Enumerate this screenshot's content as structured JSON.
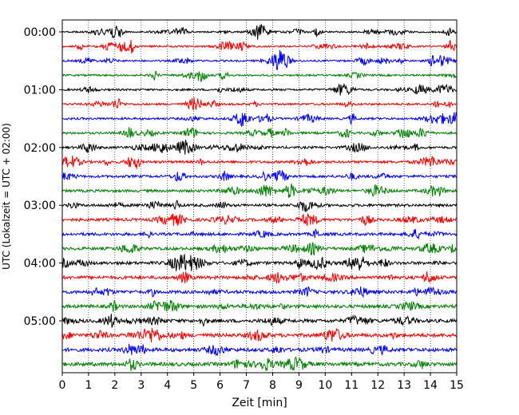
{
  "chart_data": {
    "type": "line",
    "subtype": "helicorder",
    "xlabel": "Zeit  [min]",
    "ylabel": "UTC (Lokalzeit = UTC + 02:00)",
    "xlim": [
      0,
      15
    ],
    "x_ticks": [
      "0",
      "1",
      "2",
      "3",
      "4",
      "5",
      "6",
      "7",
      "8",
      "9",
      "10",
      "11",
      "12",
      "13",
      "14",
      "15"
    ],
    "y_ticks": [
      "00:00",
      "01:00",
      "02:00",
      "03:00",
      "04:00",
      "05:00"
    ],
    "trace_interval_minutes": 15,
    "trace_colors": [
      "#000000",
      "#ff0000",
      "#0000ff",
      "#008000"
    ],
    "traces": [
      "00:00",
      "00:15",
      "00:30",
      "00:45",
      "01:00",
      "01:15",
      "01:30",
      "01:45",
      "02:00",
      "02:15",
      "02:30",
      "02:45",
      "03:00",
      "03:15",
      "03:30",
      "03:45",
      "04:00",
      "04:15",
      "04:30",
      "04:45",
      "05:00",
      "05:15",
      "05:30",
      "05:45"
    ],
    "vertical_grid": "dotted",
    "grid": true
  }
}
